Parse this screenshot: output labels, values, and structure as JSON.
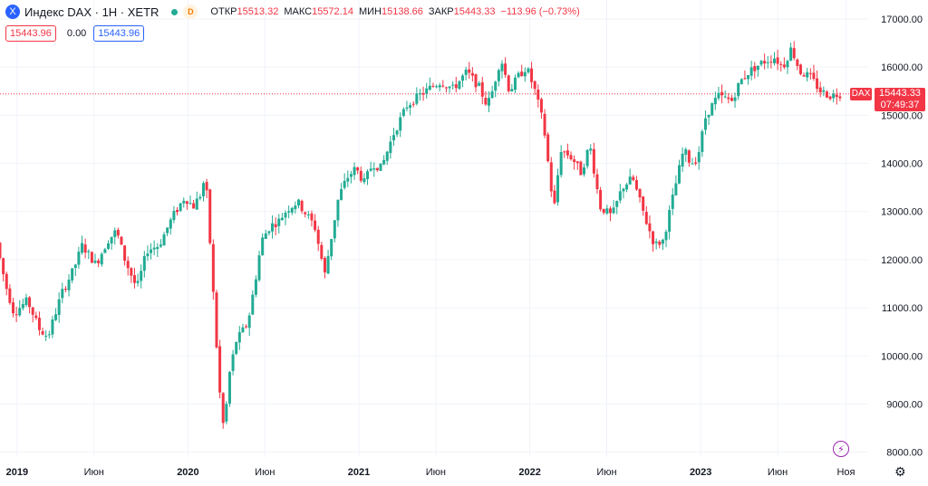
{
  "header": {
    "logo_glyph": "X",
    "symbol": "Индекс DAX · 1H · XETR",
    "status_badge": "D",
    "ohlc": {
      "open_label": "ОТКР",
      "open": "15513.32",
      "high_label": "МАКС",
      "high": "15572.14",
      "low_label": "МИН",
      "low": "15138.66",
      "close_label": "ЗАКР",
      "close": "15443.33",
      "change": "−113.96 (−0.73%)"
    },
    "sell_price": "15443.96",
    "spread": "0.00",
    "buy_price": "15443.96"
  },
  "price_tag": {
    "symbol": "DAX",
    "price": "15443.33",
    "countdown": "07:49:37"
  },
  "colors": {
    "up": "#22ab94",
    "down": "#f23645",
    "grid": "#f0f3fa",
    "text": "#131722"
  },
  "chart_data": {
    "type": "candlestick",
    "title": "Индекс DAX · 1H · XETR",
    "ylim": [
      7900,
      17300
    ],
    "yticks": [
      8000,
      9000,
      10000,
      11000,
      12000,
      13000,
      14000,
      15000,
      16000,
      17000
    ],
    "ytick_labels": [
      "8000.00",
      "9000.00",
      "10000.00",
      "11000.00",
      "12000.00",
      "13000.00",
      "14000.00",
      "15000.00",
      "16000.00",
      "17000.00"
    ],
    "xlim": [
      2018.9,
      2023.98
    ],
    "xticks": [
      {
        "pos": 2019.0,
        "label": "2019",
        "bold": true
      },
      {
        "pos": 2019.45,
        "label": "Июн",
        "bold": false
      },
      {
        "pos": 2020.0,
        "label": "2020",
        "bold": true
      },
      {
        "pos": 2020.45,
        "label": "Июн",
        "bold": false
      },
      {
        "pos": 2021.0,
        "label": "2021",
        "bold": true
      },
      {
        "pos": 2021.45,
        "label": "Июн",
        "bold": false
      },
      {
        "pos": 2022.0,
        "label": "2022",
        "bold": true
      },
      {
        "pos": 2022.45,
        "label": "Июн",
        "bold": false
      },
      {
        "pos": 2023.0,
        "label": "2023",
        "bold": true
      },
      {
        "pos": 2023.45,
        "label": "Июн",
        "bold": false
      },
      {
        "pos": 2023.85,
        "label": "Ноя",
        "bold": false
      }
    ],
    "last_price": 15443.33,
    "path": [
      [
        2018.9,
        12350
      ],
      [
        2018.95,
        11500
      ],
      [
        2019.0,
        10900
      ],
      [
        2019.08,
        11150
      ],
      [
        2019.15,
        10550
      ],
      [
        2019.2,
        10400
      ],
      [
        2019.28,
        11300
      ],
      [
        2019.35,
        11800
      ],
      [
        2019.4,
        12300
      ],
      [
        2019.48,
        11900
      ],
      [
        2019.55,
        12400
      ],
      [
        2019.6,
        12600
      ],
      [
        2019.65,
        12000
      ],
      [
        2019.72,
        11400
      ],
      [
        2019.78,
        12200
      ],
      [
        2019.85,
        12300
      ],
      [
        2019.93,
        12900
      ],
      [
        2020.0,
        13300
      ],
      [
        2020.05,
        13100
      ],
      [
        2020.1,
        13400
      ],
      [
        2020.12,
        13800
      ],
      [
        2020.14,
        12800
      ],
      [
        2020.16,
        11700
      ],
      [
        2020.19,
        10000
      ],
      [
        2020.21,
        9000
      ],
      [
        2020.23,
        8450
      ],
      [
        2020.26,
        9600
      ],
      [
        2020.3,
        10300
      ],
      [
        2020.37,
        10700
      ],
      [
        2020.41,
        11500
      ],
      [
        2020.45,
        12400
      ],
      [
        2020.5,
        12700
      ],
      [
        2020.55,
        12800
      ],
      [
        2020.6,
        13050
      ],
      [
        2020.66,
        13200
      ],
      [
        2020.7,
        13000
      ],
      [
        2020.76,
        12700
      ],
      [
        2020.82,
        11700
      ],
      [
        2020.85,
        12300
      ],
      [
        2020.9,
        13300
      ],
      [
        2020.95,
        13700
      ],
      [
        2021.0,
        13900
      ],
      [
        2021.05,
        13600
      ],
      [
        2021.1,
        14000
      ],
      [
        2021.15,
        13900
      ],
      [
        2021.22,
        14600
      ],
      [
        2021.3,
        15200
      ],
      [
        2021.37,
        15400
      ],
      [
        2021.45,
        15600
      ],
      [
        2021.5,
        15700
      ],
      [
        2021.57,
        15550
      ],
      [
        2021.65,
        15900
      ],
      [
        2021.72,
        15600
      ],
      [
        2021.77,
        15200
      ],
      [
        2021.8,
        15500
      ],
      [
        2021.85,
        16200
      ],
      [
        2021.9,
        15500
      ],
      [
        2021.95,
        15800
      ],
      [
        2022.0,
        16000
      ],
      [
        2022.05,
        15500
      ],
      [
        2022.1,
        14800
      ],
      [
        2022.16,
        13000
      ],
      [
        2022.2,
        14300
      ],
      [
        2022.27,
        14100
      ],
      [
        2022.32,
        13800
      ],
      [
        2022.37,
        14400
      ],
      [
        2022.43,
        13100
      ],
      [
        2022.5,
        12900
      ],
      [
        2022.56,
        13500
      ],
      [
        2022.62,
        13700
      ],
      [
        2022.7,
        12800
      ],
      [
        2022.75,
        12300
      ],
      [
        2022.8,
        12400
      ],
      [
        2022.85,
        13200
      ],
      [
        2022.92,
        14300
      ],
      [
        2022.96,
        14000
      ],
      [
        2023.0,
        14100
      ],
      [
        2023.05,
        15000
      ],
      [
        2023.12,
        15400
      ],
      [
        2023.2,
        15300
      ],
      [
        2023.25,
        15700
      ],
      [
        2023.3,
        15900
      ],
      [
        2023.38,
        16100
      ],
      [
        2023.45,
        16200
      ],
      [
        2023.5,
        16000
      ],
      [
        2023.55,
        16400
      ],
      [
        2023.6,
        15900
      ],
      [
        2023.66,
        15800
      ],
      [
        2023.72,
        15500
      ],
      [
        2023.78,
        15400
      ],
      [
        2023.82,
        15443.33
      ]
    ]
  },
  "icons": {
    "flash": "lightning-icon",
    "settings": "gear-icon"
  }
}
